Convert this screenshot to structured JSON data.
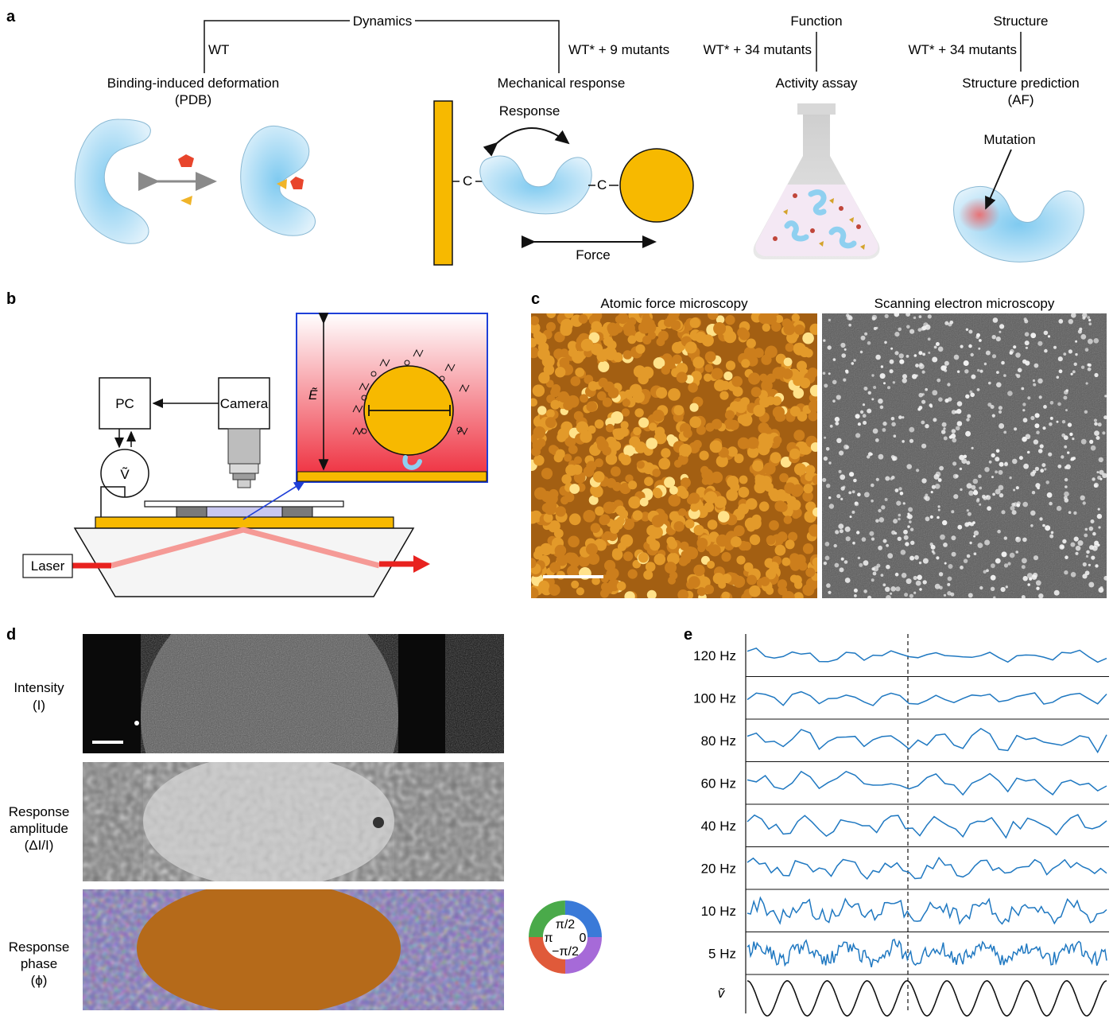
{
  "panels": {
    "a": {
      "label": "a",
      "dynamics_label": "Dynamics",
      "wt_label": "WT",
      "wt_mutants_9": "WT* + 9 mutants",
      "function_label": "Function",
      "function_mutants": "WT* + 34 mutants",
      "structure_label": "Structure",
      "structure_mutants": "WT* + 34 mutants",
      "binding_title": "Binding-induced deformation",
      "binding_sub": "(PDB)",
      "mechanical_title": "Mechanical response",
      "activity_title": "Activity assay",
      "prediction_title": "Structure prediction",
      "prediction_sub": "(AF)",
      "response_label": "Response",
      "force_label": "Force",
      "c_left": "C",
      "c_right": "C",
      "mutation_label": "Mutation"
    },
    "b": {
      "label": "b",
      "pc_label": "PC",
      "camera_label": "Camera",
      "voltage_label": "Ṽ",
      "laser_label": "Laser",
      "field_label": "Ẽ"
    },
    "c": {
      "label": "c",
      "afm_title": "Atomic force microscopy",
      "sem_title": "Scanning electron microscopy"
    },
    "d": {
      "label": "d",
      "rows": [
        {
          "line1": "Intensity",
          "line2": "(I)"
        },
        {
          "line1": "Response",
          "line2": "amplitude",
          "line3": "(ΔI/I)"
        },
        {
          "line1": "Response",
          "line2": "phase",
          "line3": "(ϕ)"
        }
      ],
      "phase_wheel": {
        "top": "π/2",
        "left": "π",
        "right": "0",
        "bottom": "−π/2"
      }
    },
    "e": {
      "label": "e",
      "traces": [
        "120 Hz",
        "100 Hz",
        "80 Hz",
        "60 Hz",
        "40 Hz",
        "20 Hz",
        "10 Hz",
        "5 Hz"
      ],
      "reference_label": "ṽ"
    }
  },
  "colors": {
    "protein": "#bfe3f5",
    "gold": "#f7b900",
    "trace": "#1f78c1",
    "red_arrow": "#e8221f",
    "pentagon": "#e8452c",
    "triangle": "#f0b429"
  }
}
